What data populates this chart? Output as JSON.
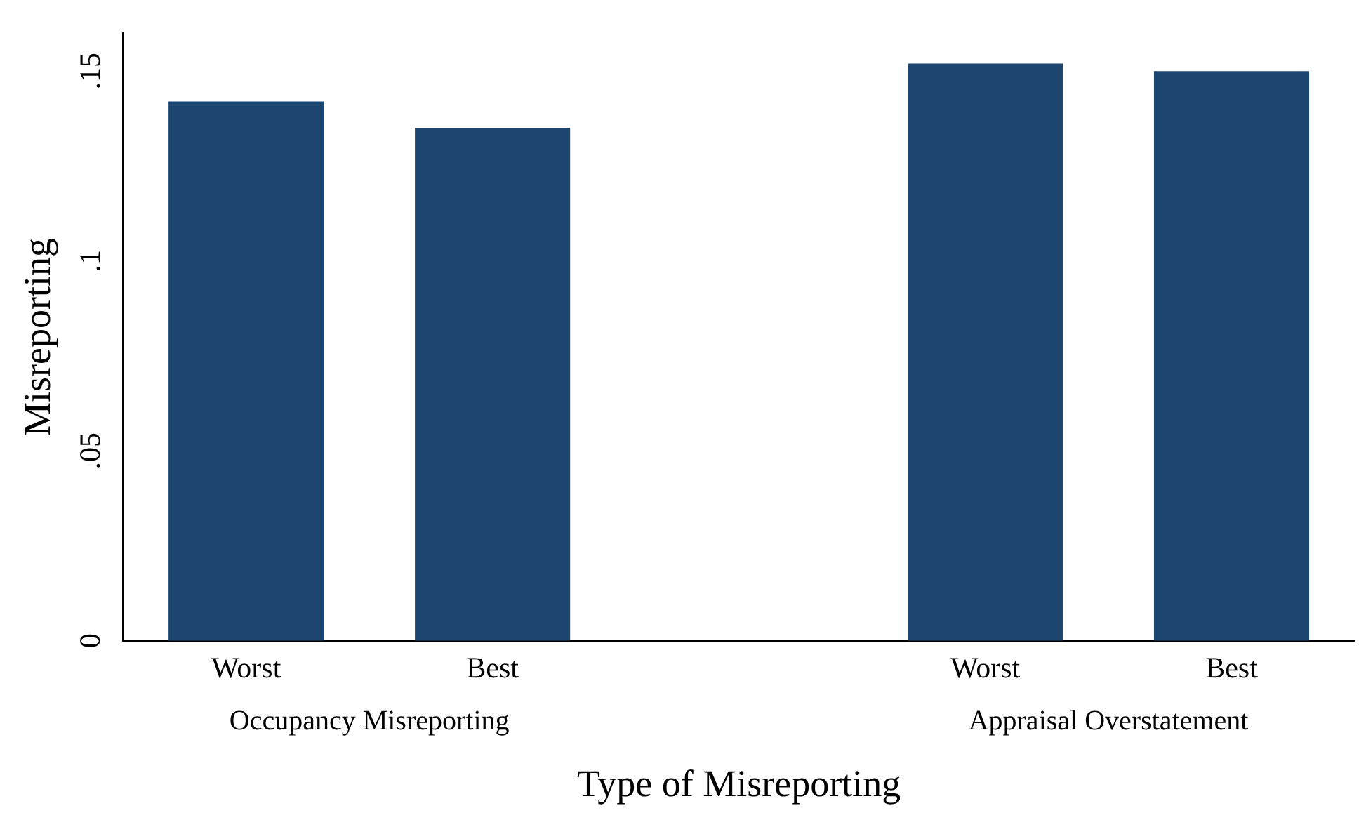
{
  "chart_data": {
    "type": "bar",
    "xlabel": "Type of Misreporting",
    "ylabel": "Misreporting",
    "categories": [
      "Worst",
      "Best",
      null,
      "Worst",
      "Best"
    ],
    "values": [
      0.142,
      0.135,
      null,
      0.152,
      0.15
    ],
    "color": "#1c4670",
    "ylim": [
      0,
      0.16
    ],
    "yticks": [
      {
        "value": 0,
        "label": "0"
      },
      {
        "value": 0.05,
        "label": ".05"
      },
      {
        "value": 0.1,
        "label": ".1"
      },
      {
        "value": 0.15,
        "label": ".15"
      }
    ],
    "grid": false,
    "legend": false,
    "annotations": [
      "Occupancy Misreporting",
      "Appraisal Overstatement"
    ]
  }
}
